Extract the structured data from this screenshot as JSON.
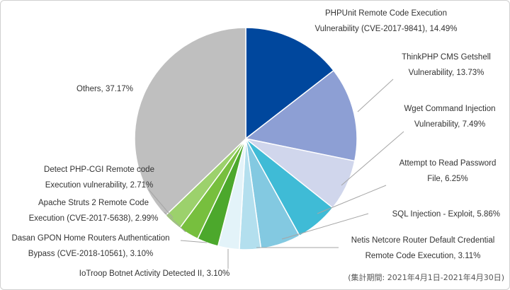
{
  "chart_data": {
    "type": "pie",
    "title": "",
    "slices": [
      {
        "name": "PHPUnit Remote Code Execution Vulnerability (CVE-2017-9841)",
        "value": 14.49,
        "color": "#00479d",
        "label_lines": [
          "PHPUnit Remote Code Execution",
          "Vulnerability (CVE-2017-9841), 14.49%"
        ]
      },
      {
        "name": "ThinkPHP CMS Getshell Vulnerability",
        "value": 13.73,
        "color": "#8d9fd4",
        "label_lines": [
          "ThinkPHP CMS Getshell",
          "Vulnerability, 13.73%"
        ]
      },
      {
        "name": "Wget Command Injection Vulnerability",
        "value": 7.49,
        "color": "#d0d6ec",
        "label_lines": [
          "Wget Command Injection",
          "Vulnerability, 7.49%"
        ]
      },
      {
        "name": "Attempt to Read Password File",
        "value": 6.25,
        "color": "#3fbbd6",
        "label_lines": [
          "Attempt to Read Password",
          "File, 6.25%"
        ]
      },
      {
        "name": "SQL Injection - Exploit",
        "value": 5.86,
        "color": "#83c9e1",
        "label_lines": [
          "SQL Injection - Exploit, 5.86%"
        ]
      },
      {
        "name": "Netis Netcore Router Default Credential Remote Code Execution",
        "value": 3.11,
        "color": "#b3dfee",
        "label_lines": [
          "Netis Netcore Router Default Credential",
          "Remote Code Execution, 3.11%"
        ]
      },
      {
        "name": "IoTroop Botnet Activity Detected II",
        "value": 3.1,
        "color": "#e3f3f9",
        "label_lines": [
          "IoTroop Botnet Activity Detected II, 3.10%"
        ]
      },
      {
        "name": "Dasan GPON Home Routers Authentication Bypass (CVE-2018-10561)",
        "value": 3.1,
        "color": "#4ca82c",
        "label_lines": [
          "Dasan GPON Home Routers Authentication",
          "Bypass (CVE-2018-10561), 3.10%"
        ]
      },
      {
        "name": "Apache Struts 2 Remote Code Execution (CVE-2017-5638)",
        "value": 2.99,
        "color": "#77bf3e",
        "label_lines": [
          "Apache Struts 2 Remote Code",
          "Execution (CVE-2017-5638), 2.99%"
        ]
      },
      {
        "name": "Detect PHP-CGI Remote code Execution vulnerability",
        "value": 2.71,
        "color": "#9cd16c",
        "label_lines": [
          "Detect PHP-CGI Remote code",
          "Execution vulnerability, 2.71%"
        ]
      },
      {
        "name": "Others",
        "value": 37.17,
        "color": "#bfbfbf",
        "label_lines": [
          "Others, 37.17%"
        ]
      }
    ],
    "legend": "none",
    "annotation": "(集計期間: 2021年4月1日-2021年4月30日)"
  }
}
